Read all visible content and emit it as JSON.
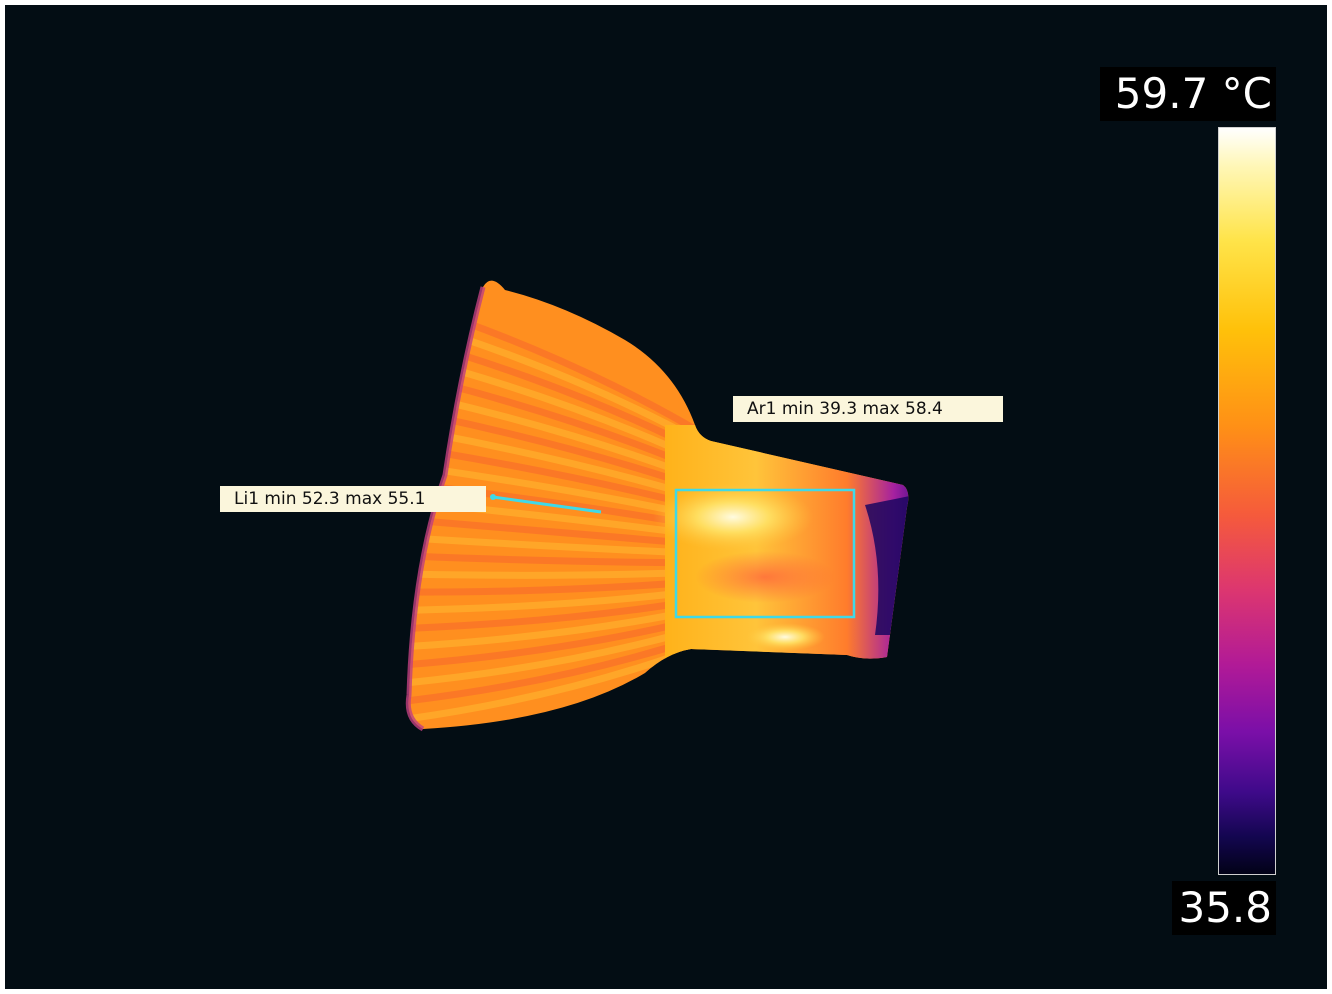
{
  "measurements": {
    "area": {
      "name": "Ar1",
      "text": "Ar1 min 39.3 max 58.4",
      "min": 39.3,
      "max": 58.4,
      "color": "#3fd9e8"
    },
    "line": {
      "name": "Li1",
      "text": "Li1 min 52.3 max 55.1",
      "min": 52.3,
      "max": 55.1,
      "color": "#3fd9e8"
    }
  },
  "scale": {
    "max_label": "59.7 °C",
    "min_label": "35.8",
    "max_value": 59.7,
    "min_value": 35.8,
    "unit": "°C",
    "palette": "iron"
  },
  "colors": {
    "background": "#030d14",
    "label_background": "#fbf6dc",
    "marker": "#3fd9e8"
  }
}
